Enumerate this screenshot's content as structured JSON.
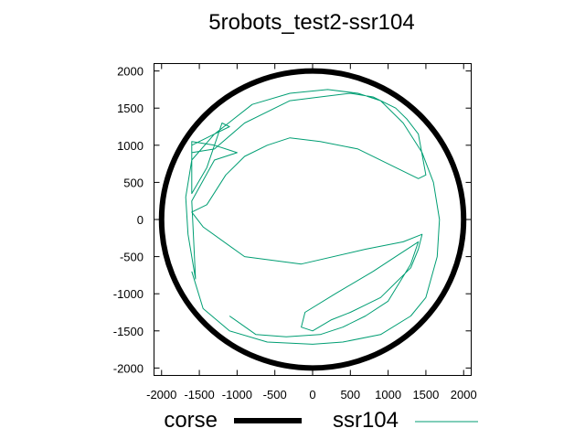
{
  "chart_data": {
    "type": "line",
    "title": "5robots_test2-ssr104",
    "xlabel": "",
    "ylabel": "",
    "xlim": [
      -2100,
      2100
    ],
    "ylim": [
      -2100,
      2100
    ],
    "x_ticks": [
      -2000,
      -1500,
      -1000,
      -500,
      0,
      500,
      1000,
      1500,
      2000
    ],
    "y_ticks": [
      -2000,
      -1500,
      -1000,
      -500,
      0,
      500,
      1000,
      1500,
      2000
    ],
    "x_tick_labels": [
      "-2000",
      "-1500",
      "-1000",
      "-500",
      "0",
      "500",
      "1000",
      "1500",
      "2000"
    ],
    "y_tick_labels": [
      "-2000",
      "-1500",
      "-1000",
      "-500",
      "0",
      "500",
      "1000",
      "1500",
      "2000"
    ],
    "grid": false,
    "legend_position": "bottom",
    "series": [
      {
        "name": "corse",
        "color": "#000000",
        "style": "circle",
        "center": [
          0,
          0
        ],
        "radius": 2000
      },
      {
        "name": "ssr104",
        "color": "#009e73",
        "x": [
          -1600,
          -1450,
          -1100,
          -600,
          0,
          400,
          900,
          1300,
          1500,
          1650,
          1680,
          1600,
          1450,
          1200,
          900,
          600,
          200,
          -300,
          -800,
          -1300,
          -1600,
          -1680,
          -1650,
          -1550,
          -1600,
          -1300,
          -1000,
          -1300,
          -1600,
          -1600,
          -1400,
          -1200,
          -1100,
          -1300,
          -1600,
          -1600,
          -1300,
          -900,
          -300,
          100,
          500,
          800,
          1100,
          1250,
          1400,
          1500,
          1400,
          1100,
          600,
          100,
          -300,
          -600,
          -900,
          -1150,
          -1400,
          -1600,
          -1450,
          -900,
          -150,
          700,
          1200,
          1450,
          1400,
          1300,
          1050,
          900,
          700,
          500,
          250,
          0,
          -150,
          -100,
          300,
          800,
          1100,
          1400,
          1300,
          1000,
          700,
          400,
          100,
          -350,
          -750,
          -1100
        ],
        "y": [
          -700,
          -1200,
          -1500,
          -1650,
          -1680,
          -1650,
          -1550,
          -1300,
          -1050,
          -500,
          0,
          500,
          900,
          1300,
          1600,
          1700,
          1750,
          1700,
          1550,
          1150,
          800,
          300,
          -200,
          -800,
          250,
          800,
          900,
          1000,
          1050,
          350,
          700,
          1300,
          1250,
          1150,
          1000,
          900,
          950,
          1300,
          1600,
          1650,
          1700,
          1650,
          1500,
          1350,
          1150,
          600,
          550,
          700,
          950,
          1050,
          1100,
          1000,
          850,
          600,
          200,
          100,
          -100,
          -500,
          -600,
          -400,
          -300,
          -200,
          -400,
          -650,
          -900,
          -1050,
          -1150,
          -1250,
          -1350,
          -1500,
          -1450,
          -1250,
          -1000,
          -700,
          -500,
          -300,
          -600,
          -1100,
          -1300,
          -1450,
          -1550,
          -1580,
          -1550,
          -1300
        ]
      }
    ]
  }
}
